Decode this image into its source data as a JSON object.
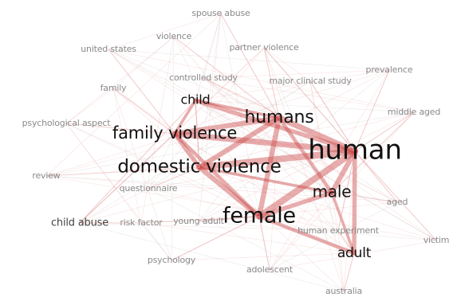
{
  "network": {
    "palette": {
      "edge_light": "#e8a0a0",
      "edge_strong": "#cc4a4a",
      "edge_grey": "#9a9a9a",
      "text_dark": "#111111",
      "text_mid": "#444444",
      "text_light": "#8a8a8a"
    },
    "nodes": [
      {
        "id": "human",
        "label": "human",
        "weight": 10
      },
      {
        "id": "humans",
        "label": "humans",
        "weight": 7
      },
      {
        "id": "female",
        "label": "female",
        "weight": 8
      },
      {
        "id": "domestic_violence",
        "label": "domestic violence",
        "weight": 7
      },
      {
        "id": "family_violence",
        "label": "family violence",
        "weight": 6
      },
      {
        "id": "male",
        "label": "male",
        "weight": 6
      },
      {
        "id": "adult",
        "label": "adult",
        "weight": 5
      },
      {
        "id": "child",
        "label": "child",
        "weight": 5
      },
      {
        "id": "child_abuse",
        "label": "child abuse",
        "weight": 4
      },
      {
        "id": "spouse_abuse",
        "label": "spouse abuse",
        "weight": 2
      },
      {
        "id": "violence",
        "label": "violence",
        "weight": 2
      },
      {
        "id": "united_states",
        "label": "united states",
        "weight": 2
      },
      {
        "id": "partner_violence",
        "label": "partner violence",
        "weight": 2
      },
      {
        "id": "prevalence",
        "label": "prevalence",
        "weight": 2
      },
      {
        "id": "family",
        "label": "family",
        "weight": 2
      },
      {
        "id": "controlled_study",
        "label": "controlled study",
        "weight": 2
      },
      {
        "id": "major_clinical_study",
        "label": "major clinical study",
        "weight": 2
      },
      {
        "id": "middle_aged",
        "label": "middle aged",
        "weight": 2
      },
      {
        "id": "psychological_aspect",
        "label": "psychological aspect",
        "weight": 2
      },
      {
        "id": "review",
        "label": "review",
        "weight": 2
      },
      {
        "id": "questionnaire",
        "label": "questionnaire",
        "weight": 2
      },
      {
        "id": "aged",
        "label": "aged",
        "weight": 2
      },
      {
        "id": "risk_factor",
        "label": "risk factor",
        "weight": 2
      },
      {
        "id": "young_adult",
        "label": "young adult",
        "weight": 2
      },
      {
        "id": "human_experiment",
        "label": "human experiment",
        "weight": 2
      },
      {
        "id": "victim",
        "label": "victim",
        "weight": 2
      },
      {
        "id": "psychology",
        "label": "psychology",
        "weight": 2
      },
      {
        "id": "adolescent",
        "label": "adolescent",
        "weight": 2
      },
      {
        "id": "australia",
        "label": "australia",
        "weight": 2
      }
    ],
    "edges": [
      [
        "human",
        "humans",
        8
      ],
      [
        "human",
        "female",
        9
      ],
      [
        "human",
        "domestic_violence",
        9
      ],
      [
        "human",
        "family_violence",
        8
      ],
      [
        "human",
        "male",
        7
      ],
      [
        "human",
        "adult",
        6
      ],
      [
        "human",
        "child",
        6
      ],
      [
        "humans",
        "female",
        7
      ],
      [
        "humans",
        "domestic_violence",
        7
      ],
      [
        "humans",
        "family_violence",
        7
      ],
      [
        "humans",
        "male",
        5
      ],
      [
        "humans",
        "child",
        4
      ],
      [
        "female",
        "domestic_violence",
        7
      ],
      [
        "female",
        "male",
        6
      ],
      [
        "female",
        "adult",
        5
      ],
      [
        "female",
        "family_violence",
        5
      ],
      [
        "domestic_violence",
        "family_violence",
        6
      ],
      [
        "domestic_violence",
        "male",
        4
      ],
      [
        "domestic_violence",
        "child",
        3
      ],
      [
        "family_violence",
        "child",
        4
      ],
      [
        "male",
        "adult",
        4
      ],
      [
        "child",
        "domestic_violence",
        3
      ],
      [
        "child_abuse",
        "child",
        2
      ],
      [
        "child_abuse",
        "family_violence",
        2
      ],
      [
        "human",
        "partner_violence",
        2
      ],
      [
        "human",
        "prevalence",
        2
      ],
      [
        "human",
        "middle_aged",
        2
      ],
      [
        "human",
        "aged",
        2
      ],
      [
        "human",
        "victim",
        2
      ],
      [
        "human",
        "human_experiment",
        2
      ],
      [
        "human",
        "major_clinical_study",
        2
      ],
      [
        "human",
        "controlled_study",
        2
      ],
      [
        "female",
        "young_adult",
        2
      ],
      [
        "female",
        "adolescent",
        2
      ],
      [
        "female",
        "risk_factor",
        2
      ],
      [
        "female",
        "psychology",
        2
      ],
      [
        "adult",
        "australia",
        2
      ],
      [
        "adult",
        "human_experiment",
        2
      ],
      [
        "male",
        "aged",
        2
      ],
      [
        "male",
        "middle_aged",
        2
      ],
      [
        "humans",
        "spouse_abuse",
        2
      ],
      [
        "humans",
        "violence",
        2
      ],
      [
        "humans",
        "partner_violence",
        2
      ],
      [
        "family_violence",
        "family",
        2
      ],
      [
        "family_violence",
        "psychological_aspect",
        2
      ],
      [
        "domestic_violence",
        "questionnaire",
        2
      ],
      [
        "domestic_violence",
        "review",
        2
      ],
      [
        "united_states",
        "family_violence",
        2
      ],
      [
        "child_abuse",
        "risk_factor",
        2
      ]
    ]
  }
}
